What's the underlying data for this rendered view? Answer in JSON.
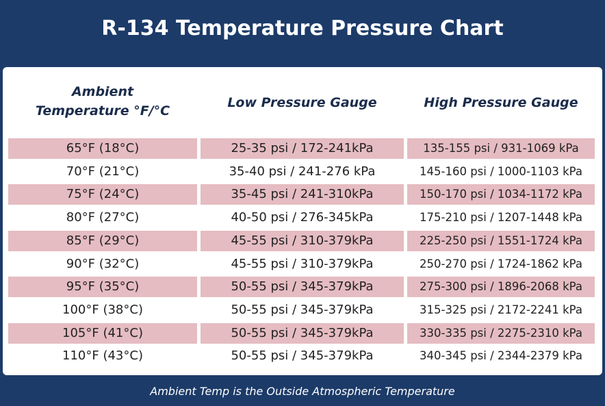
{
  "header": {
    "title": "R-134 Temperature Pressure Chart"
  },
  "table": {
    "headers": [
      [
        "Ambient",
        "Temperature °F/°C"
      ],
      "Low Pressure Gauge",
      "High Pressure Gauge"
    ],
    "rows": [
      [
        "65°F (18°C)",
        "25-35 psi / 172-241kPa",
        "135-155 psi / 931-1069 kPa"
      ],
      [
        "70°F (21°C)",
        "35-40 psi / 241-276 kPa",
        "145-160 psi / 1000-1103 kPa"
      ],
      [
        "75°F (24°C)",
        "35-45 psi / 241-310kPa",
        "150-170 psi / 1034-1172 kPa"
      ],
      [
        "80°F (27°C)",
        "40-50 psi / 276-345kPa",
        "175-210 psi / 1207-1448 kPa"
      ],
      [
        "85°F (29°C)",
        "45-55 psi / 310-379kPa",
        "225-250 psi / 1551-1724 kPa"
      ],
      [
        "90°F (32°C)",
        "45-55 psi / 310-379kPa",
        "250-270 psi / 1724-1862 kPa"
      ],
      [
        "95°F (35°C)",
        "50-55 psi / 345-379kPa",
        "275-300 psi / 1896-2068 kPa"
      ],
      [
        "100°F (38°C)",
        "50-55 psi / 345-379kPa",
        "315-325 psi / 2172-2241 kPa"
      ],
      [
        "105°F (41°C)",
        "50-55 psi / 345-379kPa",
        "330-335 psi / 2275-2310 kPa"
      ],
      [
        "110°F (43°C)",
        "50-55 psi / 345-379kPa",
        "340-345 psi / 2344-2379 kPa"
      ]
    ]
  },
  "footer": {
    "note": "Ambient Temp is the Outside Atmospheric Temperature"
  }
}
